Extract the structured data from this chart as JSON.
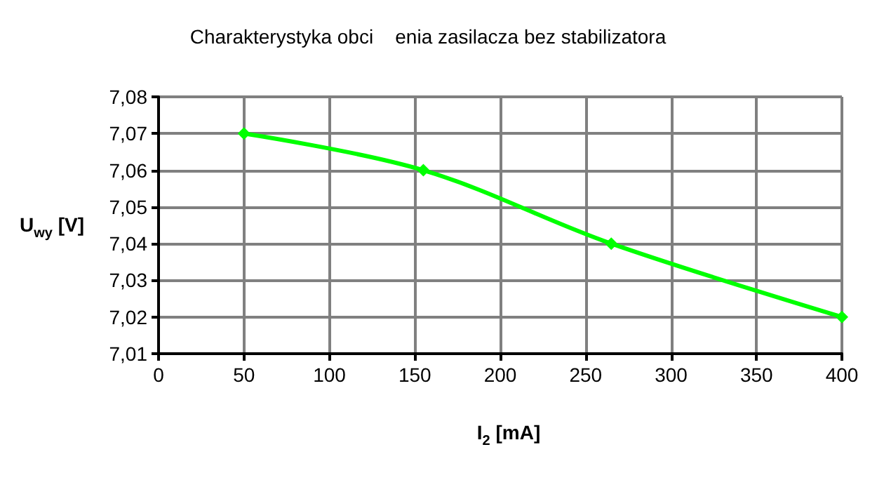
{
  "chart_data": {
    "type": "line",
    "title": "Charakterystyka obci    enia zasilacza bez stabilizatora",
    "xlabel": "I$_{2}$ [mA]",
    "ylabel": "U$_{wy}$ [V]",
    "x": [
      50,
      155,
      265,
      400
    ],
    "series": [
      {
        "color": "#00ff00",
        "values": [
          7.07,
          7.06,
          7.04,
          7.02
        ]
      }
    ],
    "xlim": [
      0,
      400
    ],
    "xticks": [
      0,
      50,
      100,
      150,
      200,
      250,
      300,
      350,
      400
    ],
    "ylim": [
      7.01,
      7.08
    ],
    "yticks": [
      {
        "value": 7.01,
        "label": "7,01"
      },
      {
        "value": 7.02,
        "label": "7,02"
      },
      {
        "value": 7.03,
        "label": "7,03"
      },
      {
        "value": 7.04,
        "label": "7,04"
      },
      {
        "value": 7.05,
        "label": "7,05"
      },
      {
        "value": 7.06,
        "label": "7,06"
      },
      {
        "value": 7.07,
        "label": "7,07"
      },
      {
        "value": 7.08,
        "label": "7,08"
      }
    ],
    "grid": true,
    "marker": "diamond",
    "line_style": "solid"
  }
}
